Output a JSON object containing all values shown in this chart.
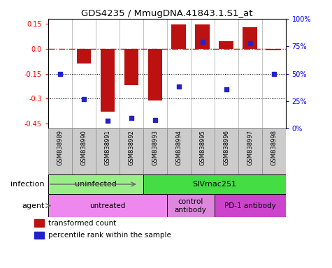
{
  "title": "GDS4235 / MmugDNA.41843.1.S1_at",
  "samples": [
    "GSM838989",
    "GSM838990",
    "GSM838991",
    "GSM838992",
    "GSM838993",
    "GSM838994",
    "GSM838995",
    "GSM838996",
    "GSM838997",
    "GSM838998"
  ],
  "bar_values": [
    0.0,
    -0.09,
    -0.38,
    -0.22,
    -0.31,
    0.145,
    0.145,
    0.045,
    0.13,
    -0.01
  ],
  "dot_values": [
    0.5,
    0.27,
    0.07,
    0.1,
    0.08,
    0.38,
    0.79,
    0.36,
    0.78,
    0.5
  ],
  "ylim_left": [
    -0.48,
    0.18
  ],
  "ylim_right": [
    0,
    1.0
  ],
  "yticks_left": [
    -0.45,
    -0.3,
    -0.15,
    0.0,
    0.15
  ],
  "yticks_right": [
    0,
    0.25,
    0.5,
    0.75,
    1.0
  ],
  "yticklabels_right": [
    "0%",
    "25%",
    "50%",
    "75%",
    "100%"
  ],
  "hline_y": 0.0,
  "dotted_lines": [
    -0.15,
    -0.3
  ],
  "bar_color": "#bb1111",
  "dot_color": "#2222cc",
  "infection_groups": [
    {
      "label": "uninfected",
      "start": 0,
      "end": 3,
      "color": "#99ee88"
    },
    {
      "label": "SIVmac251",
      "start": 4,
      "end": 9,
      "color": "#44dd44"
    }
  ],
  "agent_groups": [
    {
      "label": "untreated",
      "start": 0,
      "end": 4,
      "color": "#ee88ee"
    },
    {
      "label": "control\nantibody",
      "start": 5,
      "end": 6,
      "color": "#dd88dd"
    },
    {
      "label": "PD-1 antibody",
      "start": 7,
      "end": 9,
      "color": "#cc44cc"
    }
  ],
  "legend_bar_label": "transformed count",
  "legend_dot_label": "percentile rank within the sample",
  "sample_box_color": "#cccccc",
  "sample_box_edge": "#888888"
}
